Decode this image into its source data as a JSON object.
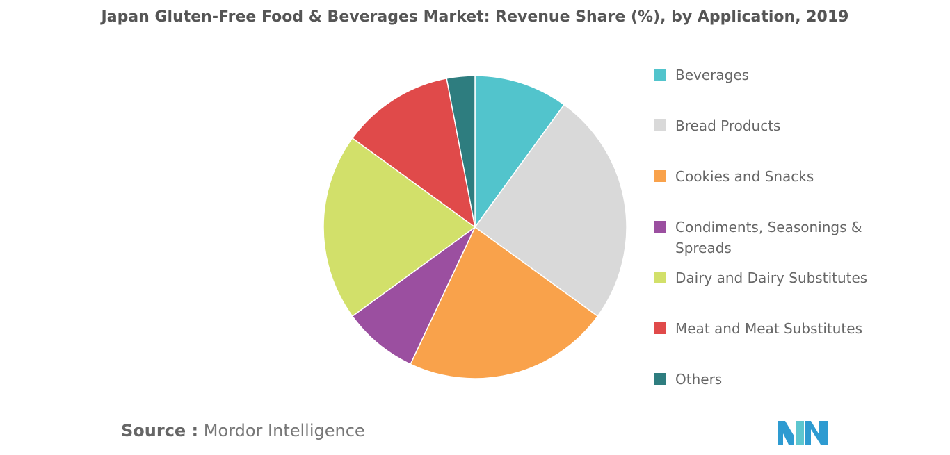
{
  "title": "Japan Gluten-Free Food & Beverages Market: Revenue Share (%), by Application, 2019",
  "source": {
    "label": "Source :",
    "text": "Mordor Intelligence"
  },
  "logo": {
    "icon": "mordor-intelligence-logo-icon",
    "colors": [
      "#2E9BD1",
      "#5DC6CF"
    ]
  },
  "chart_data": {
    "type": "pie",
    "title": "Japan Gluten-Free Food & Beverages Market: Revenue Share (%), by Application, 2019",
    "legend_position": "right",
    "start_angle": "12 o'clock",
    "direction": "clockwise",
    "slices": [
      {
        "name": "Beverages",
        "value": 10,
        "color": "#52C4CC"
      },
      {
        "name": "Bread Products",
        "value": 25,
        "color": "#D9D9D9"
      },
      {
        "name": "Cookies and Snacks",
        "value": 22,
        "color": "#F9A24B"
      },
      {
        "name": "Condiments, Seasonings & Spreads",
        "value": 8,
        "color": "#9B4FA0"
      },
      {
        "name": "Dairy and Dairy Substitutes",
        "value": 20,
        "color": "#D2E06A"
      },
      {
        "name": "Meat and Meat Substitutes",
        "value": 12,
        "color": "#E04A4A"
      },
      {
        "name": "Others",
        "value": 3,
        "color": "#2E7D7F"
      }
    ]
  }
}
